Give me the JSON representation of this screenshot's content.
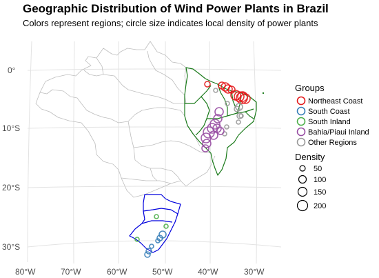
{
  "title": "Geographic Distribution of Wind Power Plants in Brazil",
  "subtitle": "Colors represent regions; circle size indicates local density of power plants",
  "axes": {
    "x_ticks": [
      "80°W",
      "70°W",
      "60°W",
      "50°W",
      "40°W",
      "30°W"
    ],
    "y_ticks": [
      "0°",
      "10°S",
      "20°S",
      "30°S"
    ]
  },
  "legend": {
    "groups_title": "Groups",
    "groups": [
      {
        "label": "Northeast Coast",
        "color": "#e41a1c"
      },
      {
        "label": "South Coast",
        "color": "#377eb8"
      },
      {
        "label": "South Inland",
        "color": "#4daf4a"
      },
      {
        "label": "Bahia/Piaui Inland",
        "color": "#984ea3"
      },
      {
        "label": "Other Regions",
        "color": "#999999"
      }
    ],
    "density_title": "Density",
    "density_labels": [
      "50",
      "100",
      "150",
      "200"
    ]
  },
  "colors": {
    "northeast_boundary": "#1a7a1a",
    "south_boundary": "#0000dd",
    "state_lines": "#bdbdbd",
    "graticule": "#e3e3e3"
  }
}
